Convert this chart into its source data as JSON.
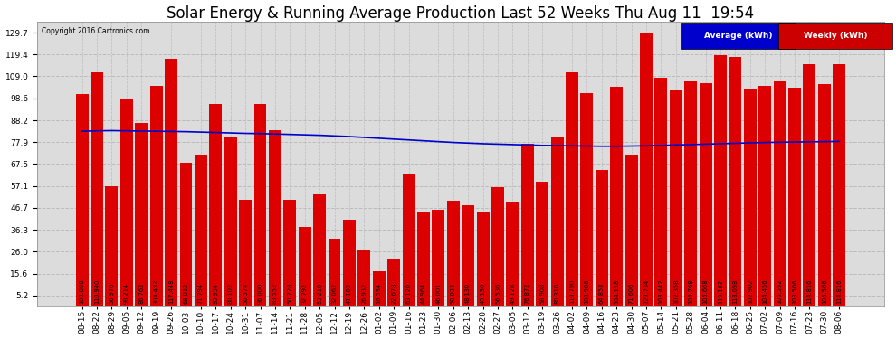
{
  "title": "Solar Energy & Running Average Production Last 52 Weeks Thu Aug 11  19:54",
  "copyright": "Copyright 2016 Cartronics.com",
  "legend_labels": [
    "Average (kWh)",
    "Weekly (kWh)"
  ],
  "legend_bg_colors": [
    "#0000cc",
    "#cc0000"
  ],
  "bar_color": "#dd0000",
  "line_color": "#0000cc",
  "background_color": "#ffffff",
  "plot_bg_color": "#dcdcdc",
  "ylim": [
    0,
    135
  ],
  "yticks": [
    5.2,
    15.6,
    26.0,
    36.3,
    46.7,
    57.1,
    67.5,
    77.9,
    88.2,
    98.6,
    109.0,
    119.4,
    129.7
  ],
  "categories": [
    "08-15",
    "08-22",
    "08-29",
    "09-05",
    "09-12",
    "09-19",
    "09-26",
    "10-03",
    "10-10",
    "10-17",
    "10-24",
    "10-31",
    "11-07",
    "11-14",
    "11-21",
    "11-28",
    "12-05",
    "12-12",
    "12-19",
    "12-26",
    "01-02",
    "01-09",
    "01-16",
    "01-23",
    "01-30",
    "02-06",
    "02-13",
    "02-20",
    "02-27",
    "03-05",
    "03-12",
    "03-19",
    "03-26",
    "04-02",
    "04-09",
    "04-16",
    "04-23",
    "04-30",
    "05-07",
    "05-14",
    "05-21",
    "05-28",
    "06-04",
    "06-11",
    "06-18",
    "06-25",
    "07-02",
    "07-09",
    "07-16",
    "07-23",
    "07-30",
    "08-06"
  ],
  "weekly_values": [
    100.808,
    110.94,
    56.976,
    98.214,
    86.762,
    104.432,
    117.448,
    68.012,
    71.794,
    95.954,
    80.102,
    50.574,
    96.0,
    83.552,
    50.728,
    37.792,
    53.21,
    32.062,
    41.102,
    26.932,
    16.534,
    22.678,
    63.12,
    44.964,
    46.001,
    50.024,
    48.13,
    45.136,
    56.536,
    49.128,
    76.872,
    58.908,
    80.31,
    110.79,
    100.906,
    64.858,
    104.118,
    71.606,
    129.734,
    108.442,
    102.358,
    106.768,
    105.668,
    119.102,
    118.098,
    102.902,
    104.456,
    106.592,
    103.506,
    114.816,
    105.506,
    114.816
  ],
  "average_values": [
    83.0,
    83.2,
    83.3,
    83.2,
    83.1,
    83.0,
    82.9,
    82.8,
    82.6,
    82.4,
    82.2,
    82.0,
    81.9,
    81.7,
    81.5,
    81.3,
    81.1,
    80.8,
    80.5,
    80.1,
    79.7,
    79.3,
    78.9,
    78.5,
    78.1,
    77.7,
    77.4,
    77.1,
    76.9,
    76.7,
    76.5,
    76.3,
    76.2,
    76.1,
    76.0,
    75.9,
    75.9,
    76.0,
    76.1,
    76.3,
    76.5,
    76.7,
    76.9,
    77.1,
    77.3,
    77.5,
    77.7,
    77.8,
    77.9,
    78.0,
    78.1,
    78.2
  ],
  "grid_color": "#bbbbbb",
  "title_fontsize": 12,
  "tick_fontsize": 6.5,
  "bar_width": 0.85,
  "label_fontsize": 4.8
}
